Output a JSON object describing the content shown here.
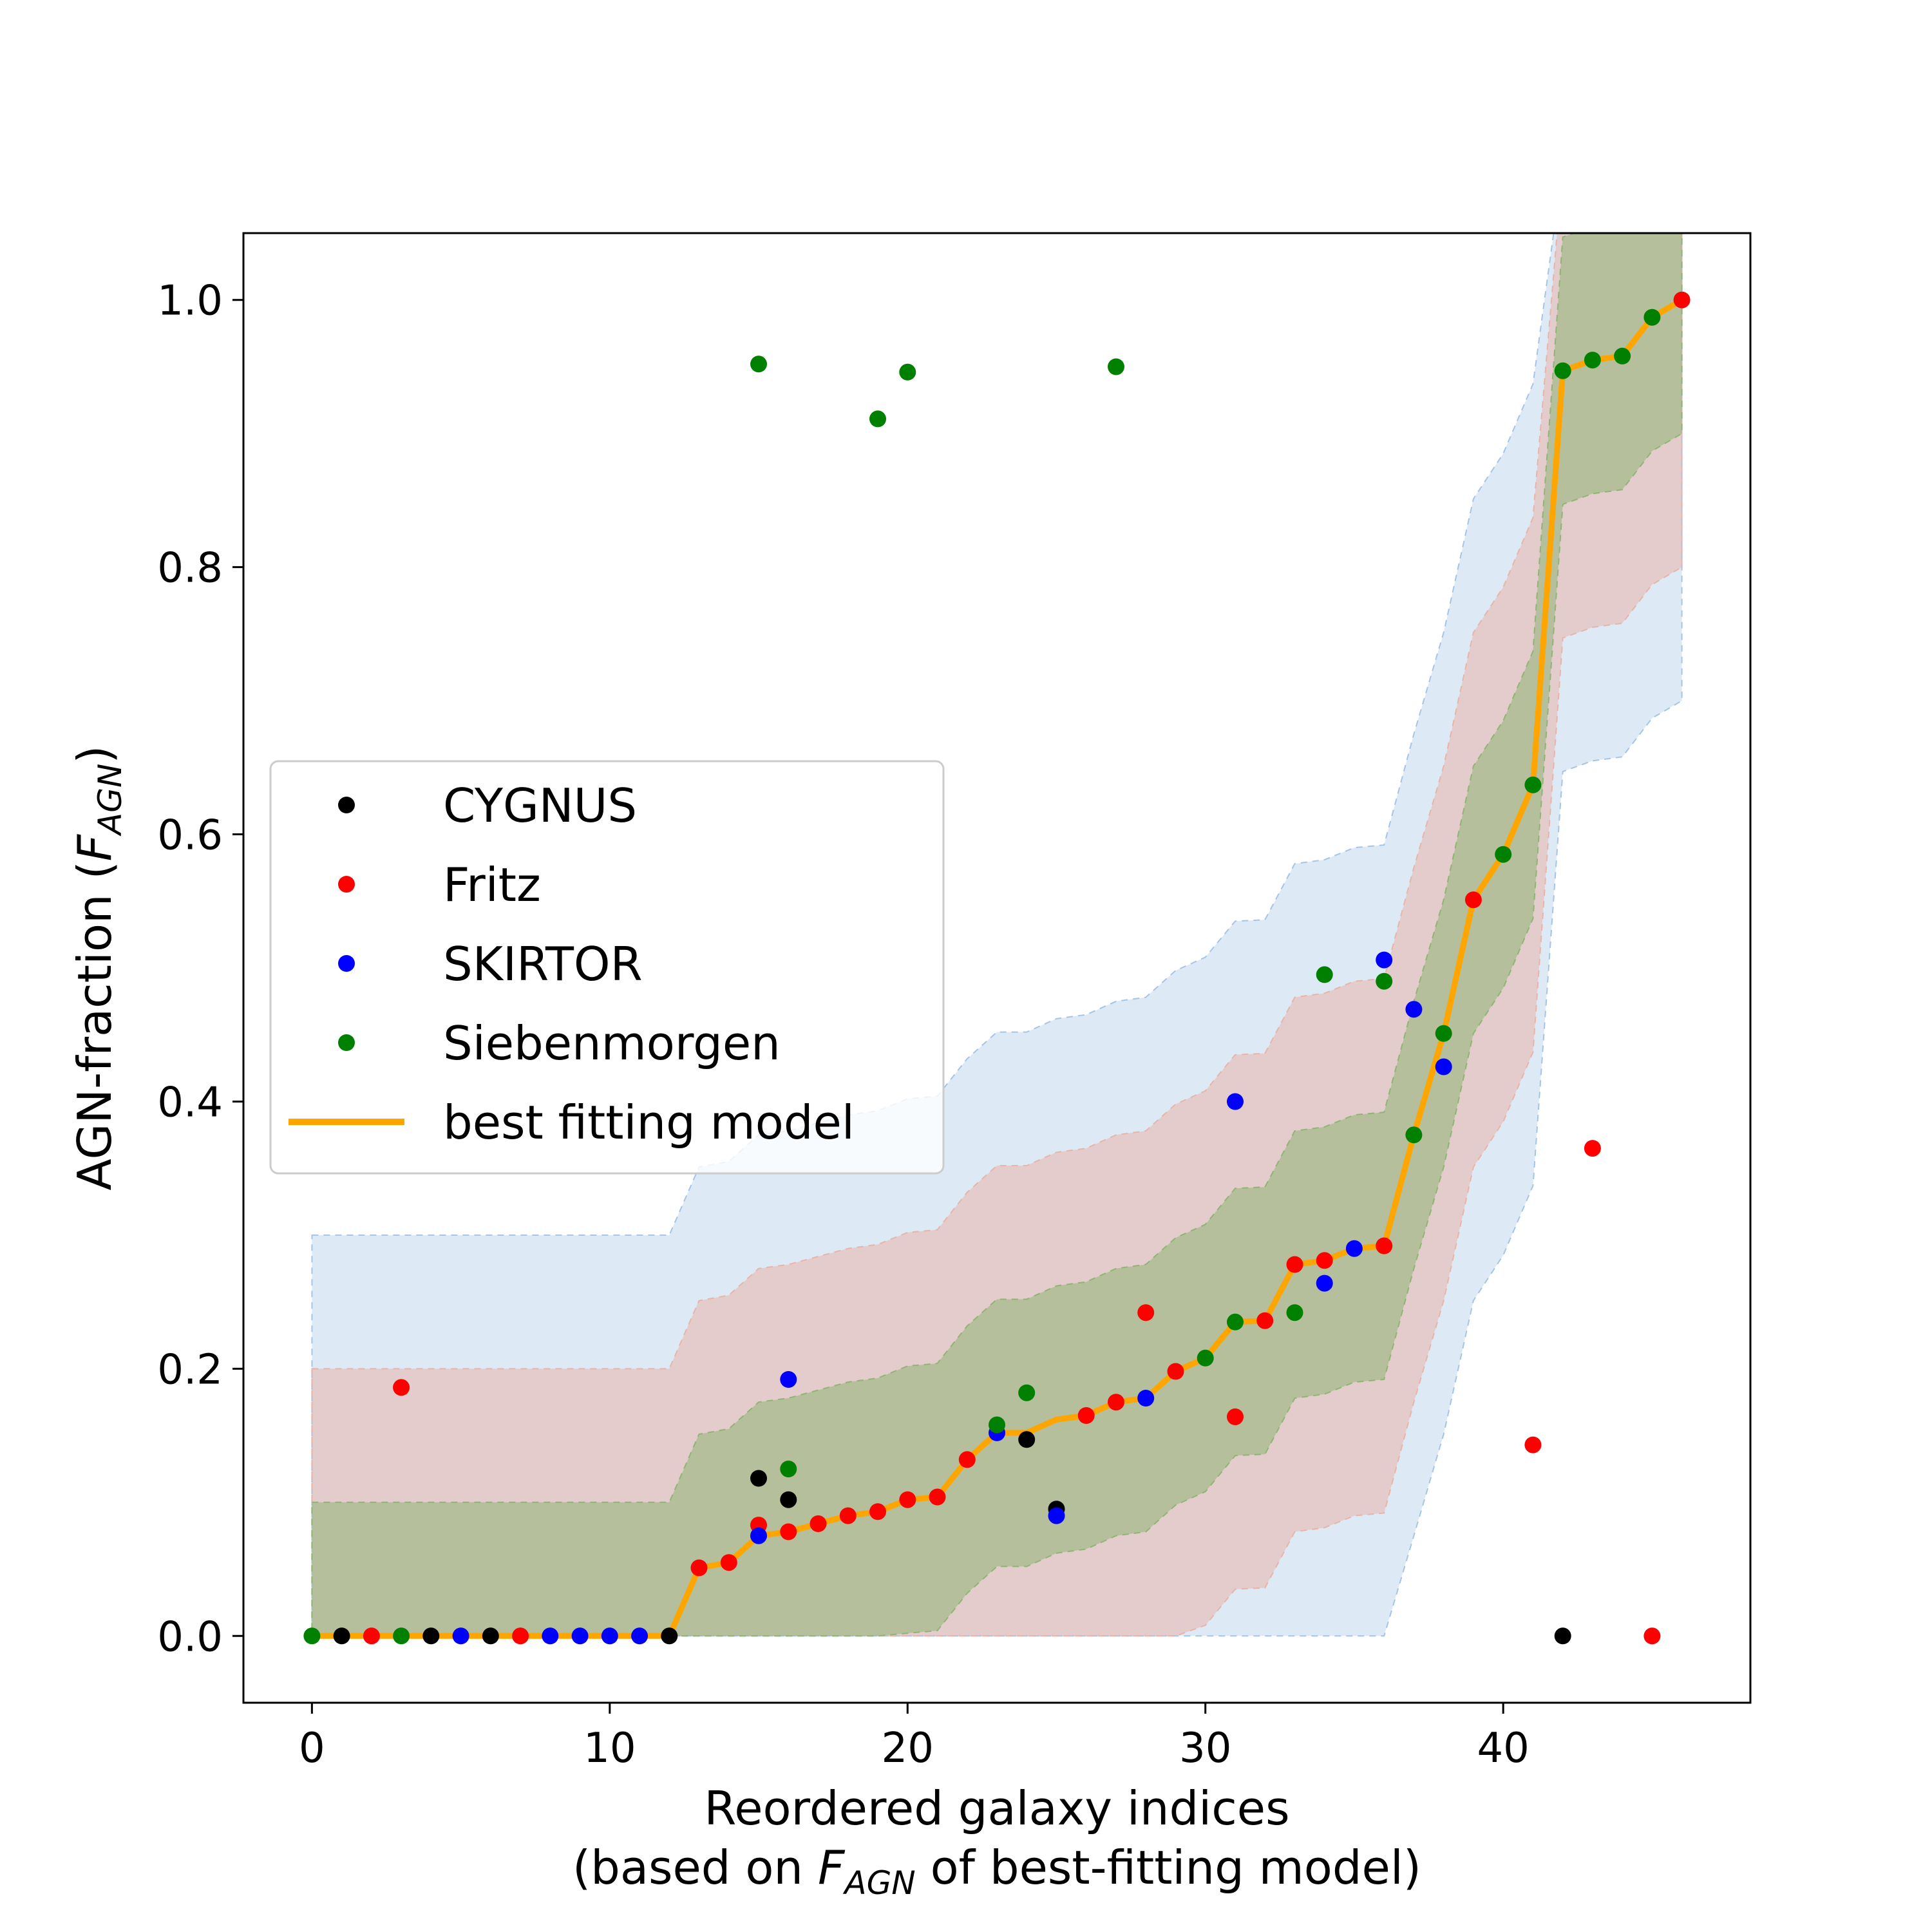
{
  "chart_data": {
    "type": "scatter",
    "title": "",
    "xlabel_line1": "Reordered galaxy indices",
    "xlabel_line2_prefix": "(based on ",
    "xlabel_line2_var": "F",
    "xlabel_line2_sub": "AGN",
    "xlabel_line2_suffix": " of best-fitting model)",
    "ylabel_prefix": "AGN-fraction (",
    "ylabel_var": "F",
    "ylabel_sub": "AGN",
    "ylabel_suffix": ")",
    "xlim": [
      -2.3,
      48.3
    ],
    "ylim": [
      -0.05,
      1.05
    ],
    "xticks": [
      0,
      10,
      20,
      30,
      40
    ],
    "xtick_labels": [
      "0",
      "10",
      "20",
      "30",
      "40"
    ],
    "yticks": [
      0.0,
      0.2,
      0.4,
      0.6,
      0.8,
      1.0
    ],
    "ytick_labels": [
      "0.0",
      "0.2",
      "0.4",
      "0.6",
      "0.8",
      "1.0"
    ],
    "legend": {
      "location": "center-left",
      "entries": [
        "CYGNUS",
        "Fritz",
        "SKIRTOR",
        "Siebenmorgen",
        "best fitting model"
      ]
    },
    "colors": {
      "CYGNUS": "#000000",
      "Fritz": "#ff0000",
      "SKIRTOR": "#0000ff",
      "Siebenmorgen": "#008000",
      "best": "#ffa500",
      "band_outer": "#a6c4e4",
      "band_mid": "#e8b4a8",
      "band_inner": "#8fb474"
    },
    "series": [
      {
        "name": "CYGNUS",
        "points": [
          [
            1,
            0
          ],
          [
            4,
            0
          ],
          [
            6,
            0
          ],
          [
            12,
            0
          ],
          [
            15,
            0.118
          ],
          [
            16,
            0.102
          ],
          [
            24,
            0.147
          ],
          [
            25,
            0.095
          ],
          [
            42,
            0
          ]
        ]
      },
      {
        "name": "Fritz",
        "points": [
          [
            2,
            0
          ],
          [
            3,
            0.186
          ],
          [
            7,
            0
          ],
          [
            13,
            0.051
          ],
          [
            14,
            0.055
          ],
          [
            15,
            0.083
          ],
          [
            16,
            0.078
          ],
          [
            17,
            0.084
          ],
          [
            18,
            0.09
          ],
          [
            19,
            0.093
          ],
          [
            20,
            0.102
          ],
          [
            21,
            0.104
          ],
          [
            22,
            0.132
          ],
          [
            26,
            0.165
          ],
          [
            27,
            0.175
          ],
          [
            28,
            0.242
          ],
          [
            29,
            0.198
          ],
          [
            31,
            0.164
          ],
          [
            32,
            0.236
          ],
          [
            33,
            0.278
          ],
          [
            34,
            0.281
          ],
          [
            36,
            0.292
          ],
          [
            39,
            0.551
          ],
          [
            41,
            0.143
          ],
          [
            43,
            0.365
          ],
          [
            45,
            0
          ],
          [
            46,
            1.0
          ]
        ]
      },
      {
        "name": "SKIRTOR",
        "points": [
          [
            5,
            0
          ],
          [
            8,
            0
          ],
          [
            9,
            0
          ],
          [
            10,
            0
          ],
          [
            11,
            0
          ],
          [
            15,
            0.075
          ],
          [
            16,
            0.192
          ],
          [
            23,
            0.152
          ],
          [
            25,
            0.09
          ],
          [
            28,
            0.178
          ],
          [
            31,
            0.4
          ],
          [
            34,
            0.264
          ],
          [
            35,
            0.29
          ],
          [
            36,
            0.506
          ],
          [
            37,
            0.469
          ],
          [
            38,
            0.426
          ]
        ]
      },
      {
        "name": "Siebenmorgen",
        "points": [
          [
            0,
            0
          ],
          [
            3,
            0
          ],
          [
            15,
            0.952
          ],
          [
            16,
            0.125
          ],
          [
            19,
            0.911
          ],
          [
            20,
            0.946
          ],
          [
            23,
            0.158
          ],
          [
            24,
            0.182
          ],
          [
            27,
            0.95
          ],
          [
            30,
            0.208
          ],
          [
            31,
            0.235
          ],
          [
            33,
            0.242
          ],
          [
            34,
            0.495
          ],
          [
            36,
            0.49
          ],
          [
            37,
            0.375
          ],
          [
            38,
            0.451
          ],
          [
            40,
            0.585
          ],
          [
            41,
            0.637
          ],
          [
            42,
            0.947
          ],
          [
            43,
            0.955
          ],
          [
            44,
            0.958
          ],
          [
            45,
            0.987
          ]
        ]
      }
    ],
    "best_fit": {
      "name": "best fitting model",
      "x": [
        0,
        1,
        2,
        3,
        4,
        5,
        6,
        7,
        8,
        9,
        10,
        11,
        12,
        13,
        14,
        15,
        16,
        17,
        18,
        19,
        20,
        21,
        22,
        23,
        24,
        25,
        26,
        27,
        28,
        29,
        30,
        31,
        32,
        33,
        34,
        35,
        36,
        37,
        38,
        39,
        40,
        41,
        42,
        43,
        44,
        45,
        46
      ],
      "y": [
        0,
        0,
        0,
        0,
        0,
        0,
        0,
        0,
        0,
        0,
        0,
        0,
        0,
        0.051,
        0.055,
        0.075,
        0.078,
        0.084,
        0.09,
        0.093,
        0.102,
        0.104,
        0.132,
        0.152,
        0.152,
        0.162,
        0.165,
        0.175,
        0.178,
        0.198,
        0.208,
        0.235,
        0.236,
        0.278,
        0.281,
        0.29,
        0.292,
        0.375,
        0.451,
        0.551,
        0.585,
        0.637,
        0.947,
        0.955,
        0.958,
        0.987,
        1.0
      ]
    },
    "bands": [
      {
        "name": "outer",
        "half_width": 0.3
      },
      {
        "name": "middle",
        "half_width": 0.2
      },
      {
        "name": "inner",
        "half_width": 0.1
      }
    ]
  }
}
